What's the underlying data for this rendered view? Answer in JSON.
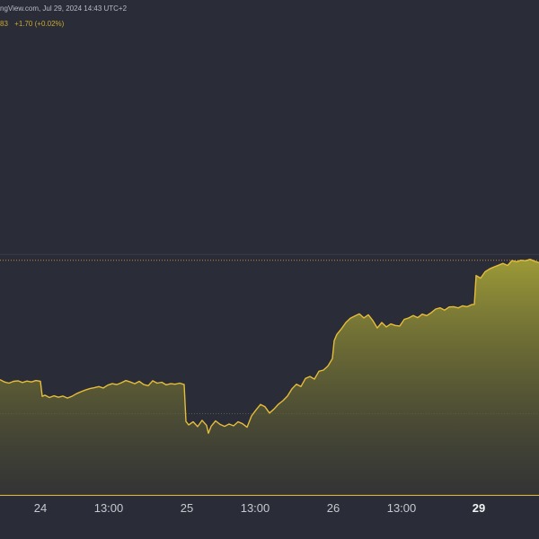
{
  "header": {
    "source_text": "ngView.com, Jul 29, 2024 14:43 UTC+2",
    "price_fragment": "83",
    "change_text": "+1.70 (+0.02%)"
  },
  "colors": {
    "background": "#2a2d37",
    "line": "#e6bd39",
    "fill_top": "#9c9a36",
    "fill_bottom": "#3a3a33",
    "price_line": "#c88a3c",
    "axis_line": "#d6b23a",
    "text_quote": "#c9a82f"
  },
  "chart_data": {
    "type": "area",
    "title": "",
    "xlabel": "",
    "ylabel": "",
    "x_axis_ticks": [
      {
        "label": "24",
        "bold": false
      },
      {
        "label": "13:00",
        "bold": false
      },
      {
        "label": "25",
        "bold": false
      },
      {
        "label": "13:00",
        "bold": false
      },
      {
        "label": "26",
        "bold": false
      },
      {
        "label": "13:00",
        "bold": false
      },
      {
        "label": "29",
        "bold": true
      }
    ],
    "x": [
      0,
      5,
      10,
      15,
      20,
      25,
      30,
      35,
      40,
      45,
      47,
      50,
      55,
      60,
      65,
      70,
      75,
      80,
      85,
      90,
      95,
      100,
      105,
      110,
      115,
      120,
      125,
      130,
      135,
      140,
      145,
      150,
      155,
      160,
      165,
      170,
      175,
      180,
      185,
      190,
      195,
      200,
      205,
      207,
      210,
      215,
      220,
      225,
      230,
      232,
      235,
      240,
      245,
      250,
      255,
      260,
      265,
      270,
      275,
      280,
      285,
      290,
      295,
      300,
      305,
      310,
      315,
      320,
      325,
      330,
      335,
      340,
      345,
      350,
      355,
      360,
      365,
      370,
      372,
      375,
      380,
      385,
      390,
      395,
      400,
      405,
      410,
      415,
      420,
      425,
      430,
      435,
      440,
      445,
      450,
      455,
      460,
      465,
      470,
      475,
      480,
      485,
      490,
      495,
      500,
      505,
      510,
      515,
      520,
      525,
      528,
      530,
      535,
      540,
      545,
      550,
      555,
      560,
      565,
      570,
      575,
      580,
      585,
      590,
      595,
      600
    ],
    "y": [
      40,
      39.2,
      38.8,
      39.4,
      39.6,
      39,
      39.5,
      39.2,
      39.7,
      39.4,
      34.2,
      34.6,
      33.8,
      34.4,
      33.9,
      34.3,
      33.6,
      34.2,
      35.1,
      35.8,
      36.4,
      36.9,
      37.2,
      37.6,
      37.1,
      38.1,
      38.6,
      38.3,
      38.9,
      39.7,
      39.2,
      38.6,
      39.4,
      38.3,
      37.9,
      39.6,
      38.8,
      39.1,
      38.2,
      38.6,
      38.4,
      38.8,
      38.3,
      25.5,
      24.3,
      25.4,
      23.7,
      25.9,
      24.1,
      21.4,
      23.8,
      25.7,
      24.5,
      23.8,
      24.6,
      24,
      25.4,
      24.7,
      23.5,
      27.4,
      29.5,
      31.4,
      30.6,
      28.4,
      29.8,
      31.5,
      32.7,
      34.3,
      36.8,
      38.4,
      37.6,
      40.4,
      41.1,
      40.2,
      42.9,
      43.3,
      44.7,
      47.3,
      53.5,
      55.7,
      57.6,
      59.8,
      61.3,
      62.1,
      62.8,
      61.4,
      62.5,
      60.5,
      57.9,
      59.8,
      58.3,
      59.3,
      58.8,
      58.6,
      60.9,
      61.4,
      62.2,
      61.5,
      62.7,
      62.2,
      63.2,
      64.5,
      64.9,
      64.1,
      65.2,
      65.3,
      64.9,
      65.6,
      65.3,
      66,
      66.1,
      76.1,
      75.2,
      77.4,
      78.4,
      79.1,
      79.7,
      80.3,
      79.6,
      81.3,
      80.9,
      81.4,
      81.2,
      81.7,
      81.1,
      80.6
    ],
    "y_range": [
      0,
      100
    ],
    "reference_lines": [
      {
        "y": 81.4,
        "style": "dotted"
      },
      {
        "y": 83.4,
        "style": "solid-faint"
      },
      {
        "y": 28.2,
        "style": "dotted-faint"
      }
    ],
    "grid": false,
    "legend": "none"
  }
}
